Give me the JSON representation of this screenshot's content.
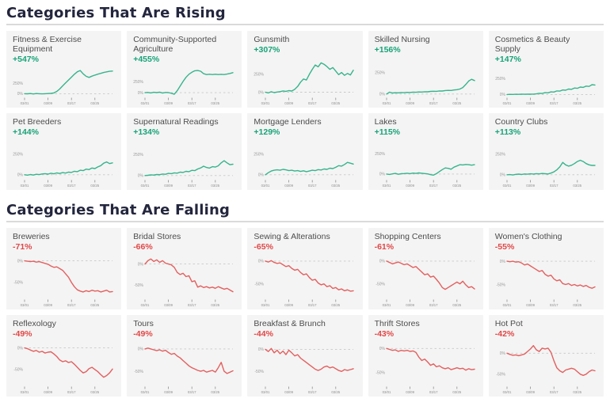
{
  "sections": [
    {
      "id": "rising",
      "heading": "Categories That Are Rising",
      "accent": "#17a378",
      "line_color": "#36b48c",
      "y_grid": [
        {
          "value": 250,
          "label": "250%",
          "line": false
        },
        {
          "value": 0,
          "label": "0%",
          "line": true
        }
      ],
      "x_ticks": [
        {
          "label": "03/01",
          "index": 0
        },
        {
          "label": "03/09",
          "index": 8
        },
        {
          "label": "03/17",
          "index": 16
        },
        {
          "label": "03/25",
          "index": 24
        }
      ]
    },
    {
      "id": "falling",
      "heading": "Categories That Are Falling",
      "accent": "#e14747",
      "line_color": "#e45f5f",
      "y_grid": [
        {
          "value": 0,
          "label": "0%",
          "line": true
        },
        {
          "value": -50,
          "label": "-50%",
          "line": false
        }
      ],
      "x_ticks": [
        {
          "label": "03/01",
          "index": 0
        },
        {
          "label": "03/09",
          "index": 8
        },
        {
          "label": "03/17",
          "index": 16
        },
        {
          "label": "03/25",
          "index": 24
        }
      ]
    }
  ],
  "chart_data": [
    {
      "section": "rising",
      "type": "line",
      "title": "Fitness & Exercise Equipment",
      "change": "+547%",
      "ylim": [
        -50,
        620
      ],
      "values": [
        0,
        -3,
        4,
        -6,
        3,
        0,
        -4,
        0,
        3,
        8,
        18,
        55,
        115,
        190,
        260,
        330,
        400,
        470,
        530,
        560,
        480,
        420,
        395,
        425,
        450,
        473,
        492,
        512,
        528,
        542,
        547
      ]
    },
    {
      "section": "rising",
      "type": "line",
      "title": "Community-Supported Agriculture",
      "change": "+455%",
      "ylim": [
        -70,
        560
      ],
      "values": [
        0,
        6,
        -6,
        9,
        2,
        12,
        -8,
        6,
        2,
        -12,
        -35,
        45,
        150,
        255,
        350,
        420,
        465,
        498,
        505,
        488,
        432,
        412,
        420,
        413,
        419,
        412,
        418,
        413,
        424,
        438,
        455
      ]
    },
    {
      "section": "rising",
      "type": "line",
      "title": "Gunsmith",
      "change": "+307%",
      "ylim": [
        -50,
        470
      ],
      "values": [
        0,
        -10,
        6,
        -6,
        2,
        8,
        18,
        12,
        22,
        16,
        40,
        80,
        140,
        185,
        170,
        250,
        320,
        380,
        355,
        410,
        390,
        358,
        320,
        345,
        295,
        245,
        275,
        235,
        262,
        240,
        307
      ]
    },
    {
      "section": "rising",
      "type": "line",
      "title": "Skilled Nursing",
      "change": "+156%",
      "ylim": [
        -20,
        410
      ],
      "values": [
        0,
        22,
        12,
        15,
        14,
        17,
        16,
        19,
        18,
        21,
        20,
        24,
        23,
        27,
        26,
        30,
        32,
        31,
        36,
        35,
        40,
        42,
        41,
        47,
        50,
        58,
        75,
        110,
        150,
        170,
        156
      ]
    },
    {
      "section": "rising",
      "type": "line",
      "title": "Cosmetics & Beauty Supply",
      "change": "+147%",
      "ylim": [
        -20,
        410
      ],
      "values": [
        0,
        2,
        1,
        3,
        2,
        4,
        3,
        5,
        4,
        6,
        10,
        18,
        16,
        28,
        26,
        40,
        38,
        55,
        52,
        70,
        66,
        85,
        80,
        100,
        95,
        115,
        110,
        130,
        125,
        152,
        147
      ]
    },
    {
      "section": "rising",
      "type": "line",
      "title": "Pet Breeders",
      "change": "+144%",
      "ylim": [
        -40,
        410
      ],
      "values": [
        0,
        -5,
        3,
        -4,
        6,
        2,
        10,
        14,
        8,
        18,
        12,
        22,
        16,
        26,
        20,
        32,
        28,
        42,
        38,
        55,
        50,
        68,
        62,
        82,
        75,
        95,
        110,
        140,
        155,
        135,
        144
      ]
    },
    {
      "section": "rising",
      "type": "line",
      "title": "Supernatural Readings",
      "change": "+134%",
      "ylim": [
        -30,
        410
      ],
      "values": [
        0,
        3,
        8,
        6,
        12,
        10,
        18,
        15,
        25,
        22,
        32,
        28,
        40,
        36,
        50,
        46,
        62,
        58,
        78,
        90,
        110,
        95,
        88,
        105,
        100,
        115,
        150,
        175,
        150,
        128,
        134
      ]
    },
    {
      "section": "rising",
      "type": "line",
      "title": "Mortgage Lenders",
      "change": "+129%",
      "ylim": [
        -40,
        410
      ],
      "values": [
        0,
        25,
        45,
        55,
        60,
        55,
        65,
        60,
        50,
        55,
        45,
        50,
        40,
        48,
        38,
        45,
        55,
        50,
        62,
        58,
        70,
        65,
        80,
        75,
        90,
        110,
        105,
        125,
        150,
        140,
        129
      ]
    },
    {
      "section": "rising",
      "type": "line",
      "title": "Lakes",
      "change": "+115%",
      "ylim": [
        -50,
        410
      ],
      "values": [
        0,
        -5,
        2,
        8,
        -3,
        4,
        6,
        10,
        5,
        12,
        8,
        14,
        10,
        6,
        2,
        -8,
        -14,
        5,
        30,
        55,
        75,
        70,
        60,
        85,
        100,
        115,
        112,
        118,
        115,
        110,
        115
      ]
    },
    {
      "section": "rising",
      "type": "line",
      "title": "Country Clubs",
      "change": "+113%",
      "ylim": [
        -40,
        410
      ],
      "values": [
        0,
        2,
        -3,
        5,
        8,
        4,
        10,
        7,
        12,
        9,
        14,
        11,
        16,
        13,
        10,
        20,
        35,
        60,
        95,
        150,
        120,
        105,
        115,
        135,
        160,
        175,
        160,
        135,
        120,
        113,
        113
      ]
    },
    {
      "section": "falling",
      "type": "line",
      "title": "Breweries",
      "change": "-71%",
      "ylim": [
        -85,
        12
      ],
      "values": [
        0,
        -1,
        -2,
        -1,
        -3,
        -2,
        -4,
        -6,
        -8,
        -12,
        -15,
        -14,
        -18,
        -22,
        -30,
        -38,
        -50,
        -60,
        -67,
        -70,
        -72,
        -69,
        -71,
        -68,
        -70,
        -69,
        -72,
        -70,
        -68,
        -72,
        -71
      ]
    },
    {
      "section": "falling",
      "type": "line",
      "title": "Bridal Stores",
      "change": "-66%",
      "ylim": [
        -80,
        20
      ],
      "values": [
        0,
        8,
        12,
        6,
        10,
        4,
        8,
        2,
        0,
        -2,
        -8,
        -20,
        -25,
        -22,
        -30,
        -28,
        -42,
        -40,
        -55,
        -52,
        -56,
        -54,
        -57,
        -55,
        -58,
        -54,
        -57,
        -60,
        -58,
        -62,
        -66
      ]
    },
    {
      "section": "falling",
      "type": "line",
      "title": "Sewing & Alterations",
      "change": "-65%",
      "ylim": [
        -80,
        12
      ],
      "values": [
        0,
        -2,
        1,
        -3,
        -5,
        -4,
        -8,
        -12,
        -10,
        -16,
        -20,
        -18,
        -25,
        -30,
        -28,
        -36,
        -42,
        -40,
        -48,
        -52,
        -50,
        -56,
        -54,
        -60,
        -58,
        -63,
        -61,
        -65,
        -63,
        -66,
        -65
      ]
    },
    {
      "section": "falling",
      "type": "line",
      "title": "Shopping Centers",
      "change": "-61%",
      "ylim": [
        -80,
        12
      ],
      "values": [
        0,
        -3,
        -6,
        -4,
        -2,
        -5,
        -8,
        -6,
        -10,
        -14,
        -12,
        -18,
        -24,
        -30,
        -28,
        -35,
        -33,
        -40,
        -48,
        -58,
        -62,
        -58,
        -54,
        -50,
        -46,
        -50,
        -44,
        -52,
        -58,
        -56,
        -61
      ]
    },
    {
      "section": "falling",
      "type": "line",
      "title": "Women's Clothing",
      "change": "-55%",
      "ylim": [
        -78,
        12
      ],
      "values": [
        0,
        -1,
        0,
        -2,
        -1,
        -4,
        -8,
        -6,
        -10,
        -14,
        -18,
        -22,
        -20,
        -28,
        -32,
        -30,
        -38,
        -42,
        -40,
        -48,
        -50,
        -48,
        -52,
        -50,
        -53,
        -51,
        -54,
        -52,
        -56,
        -58,
        -55
      ]
    },
    {
      "section": "falling",
      "type": "line",
      "title": "Reflexology",
      "change": "-49%",
      "ylim": [
        -85,
        12
      ],
      "values": [
        0,
        -2,
        -5,
        -8,
        -6,
        -10,
        -8,
        -12,
        -10,
        -9,
        -14,
        -20,
        -28,
        -32,
        -30,
        -34,
        -32,
        -38,
        -45,
        -52,
        -58,
        -55,
        -48,
        -45,
        -50,
        -55,
        -62,
        -68,
        -64,
        -58,
        -49
      ]
    },
    {
      "section": "falling",
      "type": "line",
      "title": "Tours",
      "change": "-49%",
      "ylim": [
        -80,
        14
      ],
      "values": [
        0,
        2,
        0,
        -2,
        -4,
        -2,
        -5,
        -3,
        -8,
        -12,
        -10,
        -16,
        -20,
        -26,
        -32,
        -38,
        -42,
        -45,
        -48,
        -50,
        -48,
        -52,
        -50,
        -48,
        -52,
        -42,
        -30,
        -50,
        -55,
        -52,
        -49
      ]
    },
    {
      "section": "falling",
      "type": "line",
      "title": "Breakfast & Brunch",
      "change": "-44%",
      "ylim": [
        -80,
        15
      ],
      "values": [
        0,
        -5,
        2,
        -8,
        -2,
        -10,
        -4,
        -12,
        -2,
        -8,
        -15,
        -12,
        -20,
        -25,
        -30,
        -35,
        -40,
        -45,
        -48,
        -45,
        -40,
        -38,
        -42,
        -40,
        -44,
        -48,
        -50,
        -46,
        -48,
        -46,
        -44
      ]
    },
    {
      "section": "falling",
      "type": "line",
      "title": "Thrift Stores",
      "change": "-43%",
      "ylim": [
        -75,
        12
      ],
      "values": [
        0,
        -2,
        -4,
        -3,
        -6,
        -4,
        -5,
        -4,
        -6,
        -5,
        -8,
        -18,
        -25,
        -22,
        -28,
        -35,
        -32,
        -38,
        -36,
        -40,
        -42,
        -40,
        -44,
        -42,
        -40,
        -42,
        -41,
        -45,
        -42,
        -44,
        -43
      ]
    },
    {
      "section": "falling",
      "type": "line",
      "title": "Hot Pot",
      "change": "-42%",
      "ylim": [
        -75,
        25
      ],
      "values": [
        0,
        -3,
        -5,
        -4,
        -6,
        -4,
        -2,
        4,
        10,
        18,
        8,
        4,
        12,
        10,
        12,
        2,
        -18,
        -35,
        -42,
        -46,
        -40,
        -38,
        -36,
        -38,
        -44,
        -50,
        -53,
        -50,
        -44,
        -40,
        -42
      ]
    }
  ]
}
